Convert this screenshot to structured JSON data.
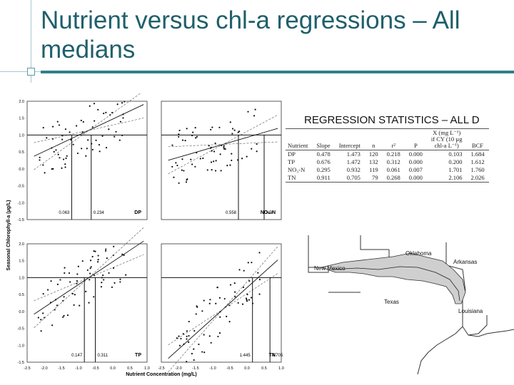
{
  "slide": {
    "title": "Nutrient versus chl-a regressions – All medians"
  },
  "stats": {
    "title": "REGRESSION STATISTICS – ALL D",
    "columns": [
      "Nutrient",
      "Slope",
      "Intercept",
      "n",
      "r²",
      "P",
      "X (mg L⁻¹) if CY (10 µg chl-a L⁻¹)",
      "BCF"
    ],
    "x_header_lines": [
      "X (mg L⁻¹)",
      "if CY (10 µg",
      "chl-a L⁻¹)"
    ],
    "rows": [
      {
        "nutrient": "DP",
        "slope": "0.478",
        "intercept": "1.473",
        "n": "120",
        "r2": "0.218",
        "p": "0.000",
        "x": "0.103",
        "bcf": "1.684"
      },
      {
        "nutrient": "TP",
        "slope": "0.676",
        "intercept": "1.472",
        "n": "132",
        "r2": "0.312",
        "p": "0.000",
        "x": "0.200",
        "bcf": "1.612"
      },
      {
        "nutrient": "NO₃-N",
        "slope": "0.295",
        "intercept": "0.932",
        "n": "119",
        "r2": "0.061",
        "p": "0.007",
        "x": "1.701",
        "bcf": "1.760"
      },
      {
        "nutrient": "TN",
        "slope": "0.911",
        "intercept": "0.705",
        "n": "79",
        "r2": "0.268",
        "p": "0.000",
        "x": "2.106",
        "bcf": "2.026"
      }
    ]
  },
  "map": {
    "labels": {
      "oklahoma": "Oklahoma",
      "arkansas": "Arkansas",
      "new_mexico": "New Mexico",
      "texas": "Texas",
      "louisiana": "Louisiana"
    },
    "colors": {
      "basin": "#cfcfcf",
      "outline": "#333333"
    }
  },
  "chart_data": {
    "type": "scatter",
    "xlabel": "Nutrient Concentration (mg/L)",
    "ylabel": "Seasonal Chlorophyll-a (µg/L)",
    "ylim": [
      -1.5,
      2.0
    ],
    "xlim": [
      -2.5,
      1.0
    ],
    "y_ticks": [
      "2.0",
      "1.5",
      "1.0",
      "0.5",
      "0.0",
      "-0.5",
      "-1.0",
      "-1.5"
    ],
    "x_ticks": [
      "-2.5",
      "-2.0",
      "-1.5",
      "-1.0",
      "-0.5",
      "0.0",
      "0.5",
      "1.0"
    ],
    "panels": [
      {
        "label": "DP",
        "left_value": "0.063",
        "right_value": "0.234",
        "slope": 0.478,
        "intercept": 1.473,
        "threshold_x": [
          -1.2,
          -0.63
        ],
        "seed": 3
      },
      {
        "label": "NO₃-N",
        "left_value": "0.558",
        "right_value": "ND",
        "slope": 0.295,
        "intercept": 0.932,
        "threshold_x": [
          -0.25,
          0.5
        ],
        "seed": 7
      },
      {
        "label": "TP",
        "left_value": "0.147",
        "right_value": "0.311",
        "slope": 0.676,
        "intercept": 1.472,
        "threshold_x": [
          -0.83,
          -0.51
        ],
        "seed": 11
      },
      {
        "label": "TN",
        "left_value": "1.445",
        "right_value": "4.705",
        "slope": 0.911,
        "intercept": 0.705,
        "threshold_x": [
          0.16,
          0.67
        ],
        "seed": 19
      }
    ]
  }
}
